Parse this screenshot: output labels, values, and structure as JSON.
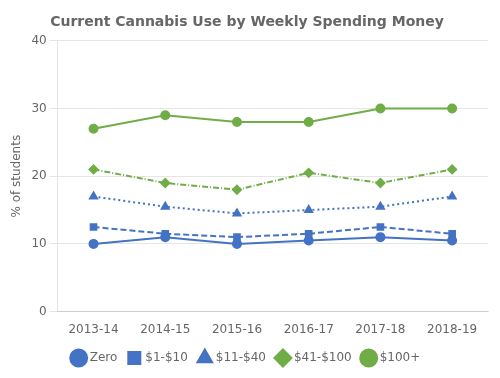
{
  "chart_data": {
    "type": "line",
    "title": "Current Cannabis Use by Weekly Spending Money",
    "ylabel": "% of students",
    "categories": [
      "2013-14",
      "2014-15",
      "2015-16",
      "2016-17",
      "2017-18",
      "2018-19"
    ],
    "series": [
      {
        "name": "Zero",
        "color": "#4472C4",
        "marker": "circle",
        "line_style": "solid",
        "values": [
          10.0,
          11.0,
          10.0,
          10.5,
          11.0,
          10.5
        ]
      },
      {
        "name": "$1-$10",
        "color": "#4472C4",
        "marker": "square",
        "line_style": "dashed",
        "values": [
          12.5,
          11.5,
          11.0,
          11.5,
          12.5,
          11.5
        ]
      },
      {
        "name": "$11-$40",
        "color": "#4472C4",
        "marker": "triangle",
        "line_style": "dotted",
        "values": [
          17.0,
          15.5,
          14.5,
          15.0,
          15.5,
          17.0
        ]
      },
      {
        "name": "$41-$100",
        "color": "#70AD47",
        "marker": "diamond",
        "line_style": "dashdot",
        "values": [
          21.0,
          19.0,
          18.0,
          20.5,
          19.0,
          21.0
        ]
      },
      {
        "name": "$100+",
        "color": "#70AD47",
        "marker": "circle",
        "line_style": "solid",
        "values": [
          27.0,
          29.0,
          28.0,
          28.0,
          30.0,
          30.0
        ]
      }
    ],
    "ylim": [
      0,
      40
    ],
    "yticks": [
      0,
      10,
      20,
      30,
      40
    ],
    "grid": "y",
    "legend": "bottom"
  }
}
